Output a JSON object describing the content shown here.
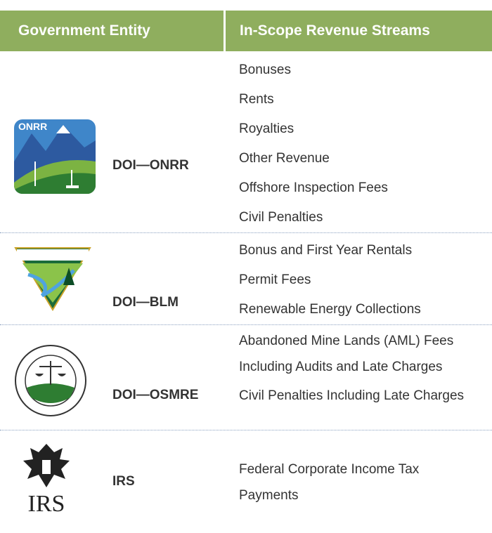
{
  "table": {
    "header": [
      "Government Entity",
      "In-Scope Revenue Streams"
    ],
    "rows": [
      {
        "entity": "DOI—ONRR",
        "logo_text": "ONRR",
        "streams": [
          "Bonuses",
          "Rents",
          "Royalties",
          "Other Revenue",
          "Offshore Inspection Fees",
          "Civil Penalties"
        ]
      },
      {
        "entity": "DOI—BLM",
        "streams": [
          "Bonus and First Year Rentals",
          "Permit Fees",
          "Renewable Energy Collections"
        ]
      },
      {
        "entity": "DOI—OSMRE",
        "streams": [
          "Abandoned Mine Lands (AML) Fees Including Audits and Late Charges",
          "Civil Penalties Including Late Charges"
        ]
      },
      {
        "entity": "IRS",
        "logo_text": "IRS",
        "streams": [
          "Federal Corporate Income Tax Payments"
        ]
      }
    ]
  }
}
